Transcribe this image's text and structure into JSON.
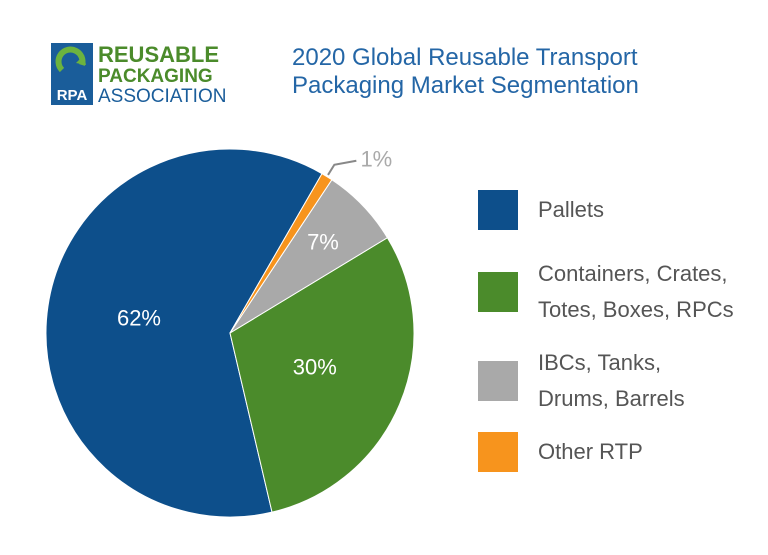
{
  "logo": {
    "badge": "RPA",
    "lines": [
      "REUSABLE",
      "PACKAGING",
      "ASSOCIATION"
    ]
  },
  "chart_data": {
    "type": "pie",
    "title": "2020 Global Reusable Transport Packaging Market Segmentation",
    "categories": [
      "Pallets",
      "Containers, Crates, Totes, Boxes, RPCs",
      "IBCs, Tanks, Drums, Barrels",
      "Other RTP"
    ],
    "values": [
      62,
      30,
      7,
      1
    ],
    "value_labels": [
      "62%",
      "30%",
      "7%",
      "1%"
    ],
    "colors": [
      "#0d4f8b",
      "#4b8b2b",
      "#a9a9a9",
      "#f7941d"
    ]
  }
}
